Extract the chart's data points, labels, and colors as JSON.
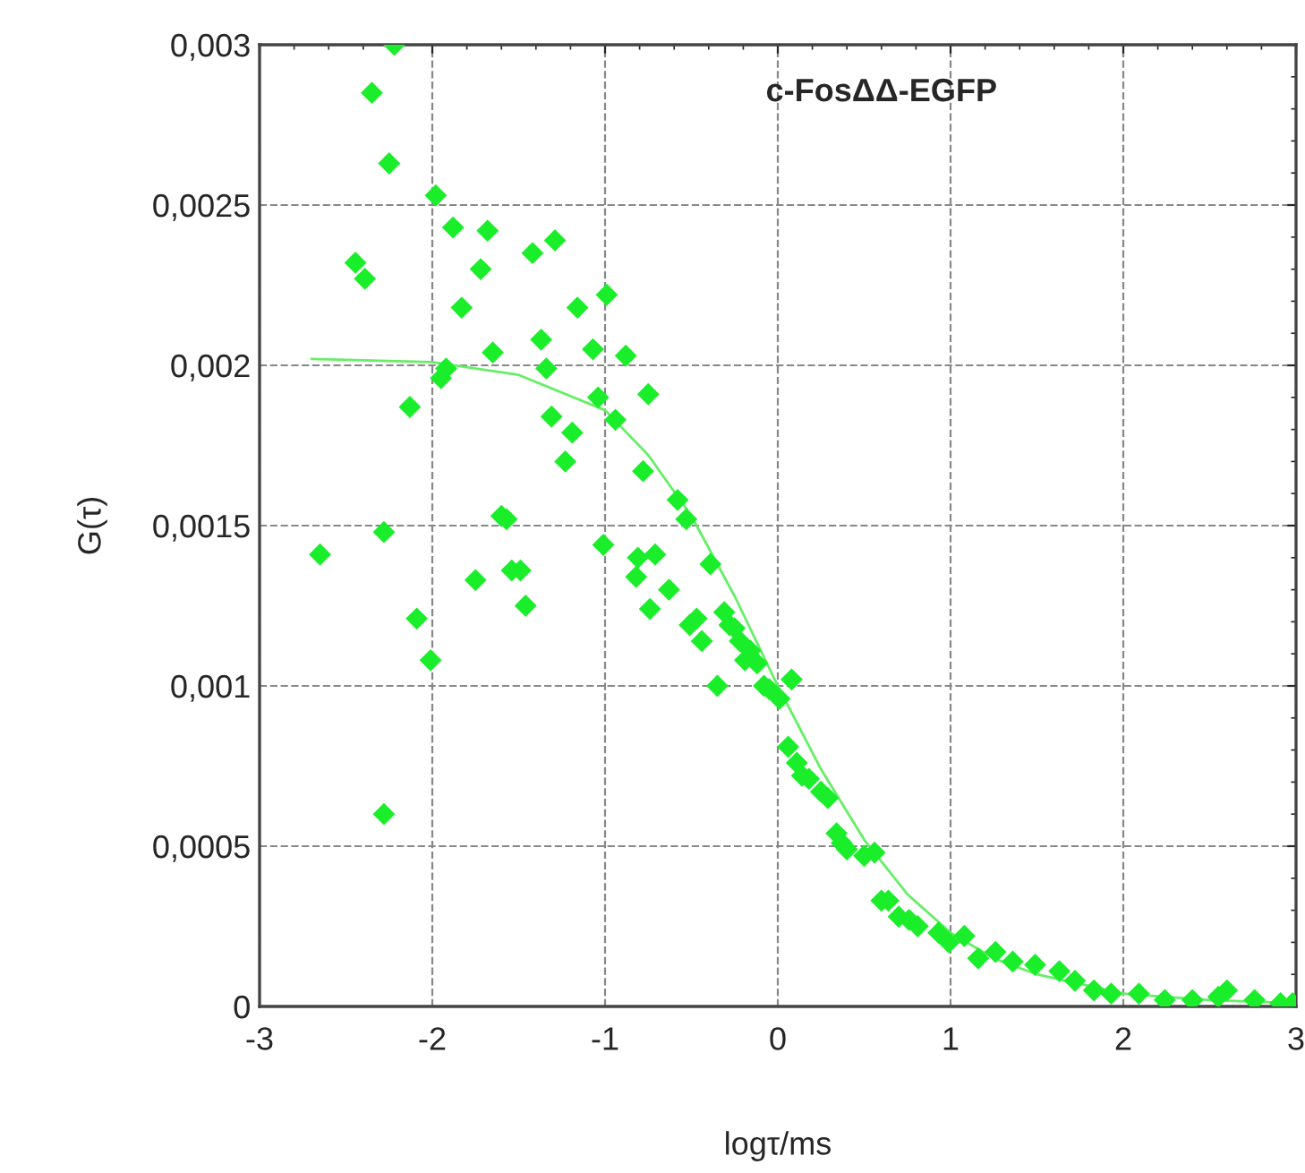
{
  "chart_data": {
    "type": "scatter",
    "title": "c-FosΔΔ-EGFP",
    "xlabel": "logτ/ms",
    "ylabel": "G(τ)",
    "xlim": [
      -3,
      3
    ],
    "ylim": [
      0,
      0.003
    ],
    "xticks": [
      {
        "value": -3,
        "label": "-3"
      },
      {
        "value": -2,
        "label": "-2"
      },
      {
        "value": -1,
        "label": "-1"
      },
      0,
      1,
      2,
      3
    ],
    "yticks": [
      0,
      {
        "value": 0.0005,
        "label": "0,0005"
      },
      {
        "value": 0.001,
        "label": "0,001"
      },
      {
        "value": 0.0015,
        "label": "0,0015"
      },
      {
        "value": 0.002,
        "label": "0,002"
      },
      {
        "value": 0.0025,
        "label": "0,0025"
      },
      {
        "value": 0.003,
        "label": "0,003"
      }
    ],
    "grid": true,
    "legend": false,
    "marker": "diamond",
    "series": [
      {
        "color": "#1aee2a",
        "x": [
          -2.65,
          -2.445,
          -2.39,
          -2.35,
          -2.28,
          -2.28,
          -2.25,
          -2.22,
          -2.13,
          -2.09,
          -2.01,
          -1.98,
          -1.95,
          -1.92,
          -1.88,
          -1.83,
          -1.75,
          -1.72,
          -1.68,
          -1.65,
          -1.6,
          -1.57,
          -1.54,
          -1.49,
          -1.46,
          -1.42,
          -1.37,
          -1.34,
          -1.31,
          -1.29,
          -1.23,
          -1.19,
          -1.16,
          -1.07,
          -1.04,
          -1.01,
          -0.99,
          -0.94,
          -0.88,
          -0.82,
          -0.81,
          -0.78,
          -0.75,
          -0.74,
          -0.71,
          -0.63,
          -0.58,
          -0.53,
          -0.51,
          -0.47,
          -0.44,
          -0.39,
          -0.35,
          -0.31,
          -0.28,
          -0.25,
          -0.22,
          -0.19,
          -0.16,
          -0.12,
          -0.08,
          -0.05,
          0.01,
          0.06,
          0.08,
          0.11,
          0.14,
          0.18,
          0.25,
          0.29,
          0.34,
          0.37,
          0.4,
          0.5,
          0.56,
          0.6,
          0.64,
          0.7,
          0.76,
          0.81,
          0.93,
          0.99,
          1.08,
          1.16,
          1.26,
          1.36,
          1.49,
          1.63,
          1.72,
          1.83,
          1.93,
          2.09,
          2.24,
          2.4,
          2.55,
          2.6,
          2.76,
          2.91,
          2.98
        ],
        "values": [
          0.00141,
          0.00232,
          0.00227,
          0.00285,
          0.0006,
          0.00148,
          0.00263,
          0.003,
          0.00187,
          0.00121,
          0.00108,
          0.00253,
          0.00196,
          0.00199,
          0.00243,
          0.00218,
          0.00133,
          0.0023,
          0.00242,
          0.00204,
          0.00153,
          0.00152,
          0.00136,
          0.00136,
          0.00125,
          0.00235,
          0.00208,
          0.00199,
          0.00184,
          0.00239,
          0.0017,
          0.00179,
          0.00218,
          0.00205,
          0.0019,
          0.00144,
          0.00222,
          0.00183,
          0.00203,
          0.00134,
          0.0014,
          0.00167,
          0.00191,
          0.00124,
          0.00141,
          0.0013,
          0.00158,
          0.00152,
          0.00119,
          0.00121,
          0.00114,
          0.00138,
          0.001,
          0.00123,
          0.00119,
          0.00118,
          0.00114,
          0.00108,
          0.00111,
          0.00107,
          0.001,
          0.00099,
          0.00096,
          0.00081,
          0.00102,
          0.00076,
          0.00072,
          0.00071,
          0.00067,
          0.00065,
          0.00054,
          0.00051,
          0.00049,
          0.00047,
          0.00048,
          0.00033,
          0.00033,
          0.00028,
          0.00027,
          0.00025,
          0.00023,
          0.0002,
          0.00022,
          0.00015,
          0.00017,
          0.00014,
          0.00013,
          0.00011,
          8e-05,
          5e-05,
          4e-05,
          4e-05,
          2e-05,
          2e-05,
          3e-05,
          5e-05,
          2e-05,
          1e-05,
          1e-05
        ]
      },
      {
        "type": "line",
        "color": "#66ee66",
        "marker": "none",
        "line_style": "solid",
        "x": [
          -2.7,
          -2,
          -1.5,
          -1,
          -0.75,
          -0.5,
          -0.25,
          0,
          0.25,
          0.5,
          0.75,
          1,
          1.25,
          1.5,
          1.75,
          2,
          2.5,
          3
        ],
        "values": [
          0.00202,
          0.00201,
          0.00197,
          0.00186,
          0.00172,
          0.00153,
          0.00128,
          0.001,
          0.00074,
          0.00052,
          0.00035,
          0.00023,
          0.00015,
          0.0001,
          7e-05,
          4e-05,
          2e-05,
          1e-05
        ]
      }
    ]
  }
}
